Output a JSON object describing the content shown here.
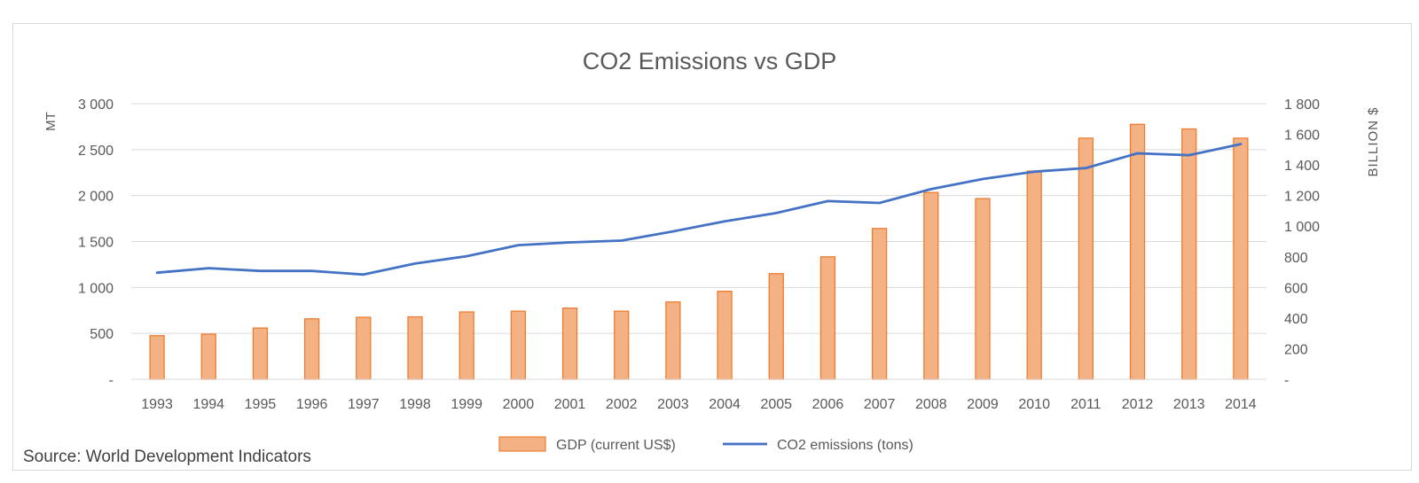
{
  "chart_data": {
    "type": "bar",
    "title": "CO2 Emissions vs GDP",
    "ylabel": "MT",
    "y2label": "BILLION $",
    "categories": [
      "1993",
      "1994",
      "1995",
      "1996",
      "1997",
      "1998",
      "1999",
      "2000",
      "2001",
      "2002",
      "2003",
      "2004",
      "2005",
      "2006",
      "2007",
      "2008",
      "2009",
      "2010",
      "2011",
      "2012",
      "2013",
      "2014"
    ],
    "ylim": [
      0,
      3000
    ],
    "y2lim": [
      0,
      1800
    ],
    "yticks": [
      {
        "value": 0,
        "label": "-"
      },
      {
        "value": 500,
        "label": "500"
      },
      {
        "value": 1000,
        "label": "1 000"
      },
      {
        "value": 1500,
        "label": "1 500"
      },
      {
        "value": 2000,
        "label": "2 000"
      },
      {
        "value": 2500,
        "label": "2 500"
      },
      {
        "value": 3000,
        "label": "3 000"
      }
    ],
    "y2ticks": [
      {
        "value": 0,
        "label": "-"
      },
      {
        "value": 200,
        "label": "200"
      },
      {
        "value": 400,
        "label": "400"
      },
      {
        "value": 600,
        "label": "600"
      },
      {
        "value": 800,
        "label": "800"
      },
      {
        "value": 1000,
        "label": "1 000"
      },
      {
        "value": 1200,
        "label": "1 200"
      },
      {
        "value": 1400,
        "label": "1 400"
      },
      {
        "value": 1600,
        "label": "1 600"
      },
      {
        "value": 1800,
        "label": "1 800"
      }
    ],
    "grid": true,
    "legend_position": "bottom",
    "series": [
      {
        "name": "GDP (current US$)",
        "type": "bar",
        "axis": "right",
        "color": "#f4b183",
        "edge_color": "#ed7d31",
        "values": [
          285,
          295,
          335,
          395,
          405,
          408,
          440,
          445,
          465,
          445,
          505,
          575,
          690,
          800,
          985,
          1220,
          1180,
          1360,
          1575,
          1665,
          1635,
          1575
        ]
      },
      {
        "name": "CO2 emissions (tons)",
        "type": "line",
        "axis": "left",
        "color": "#4472c4",
        "values": [
          1160,
          1210,
          1180,
          1180,
          1140,
          1260,
          1340,
          1460,
          1490,
          1510,
          1610,
          1720,
          1810,
          1940,
          1920,
          2070,
          2180,
          2260,
          2300,
          2460,
          2440,
          2560
        ]
      }
    ]
  },
  "source": "Source: World Development Indicators"
}
